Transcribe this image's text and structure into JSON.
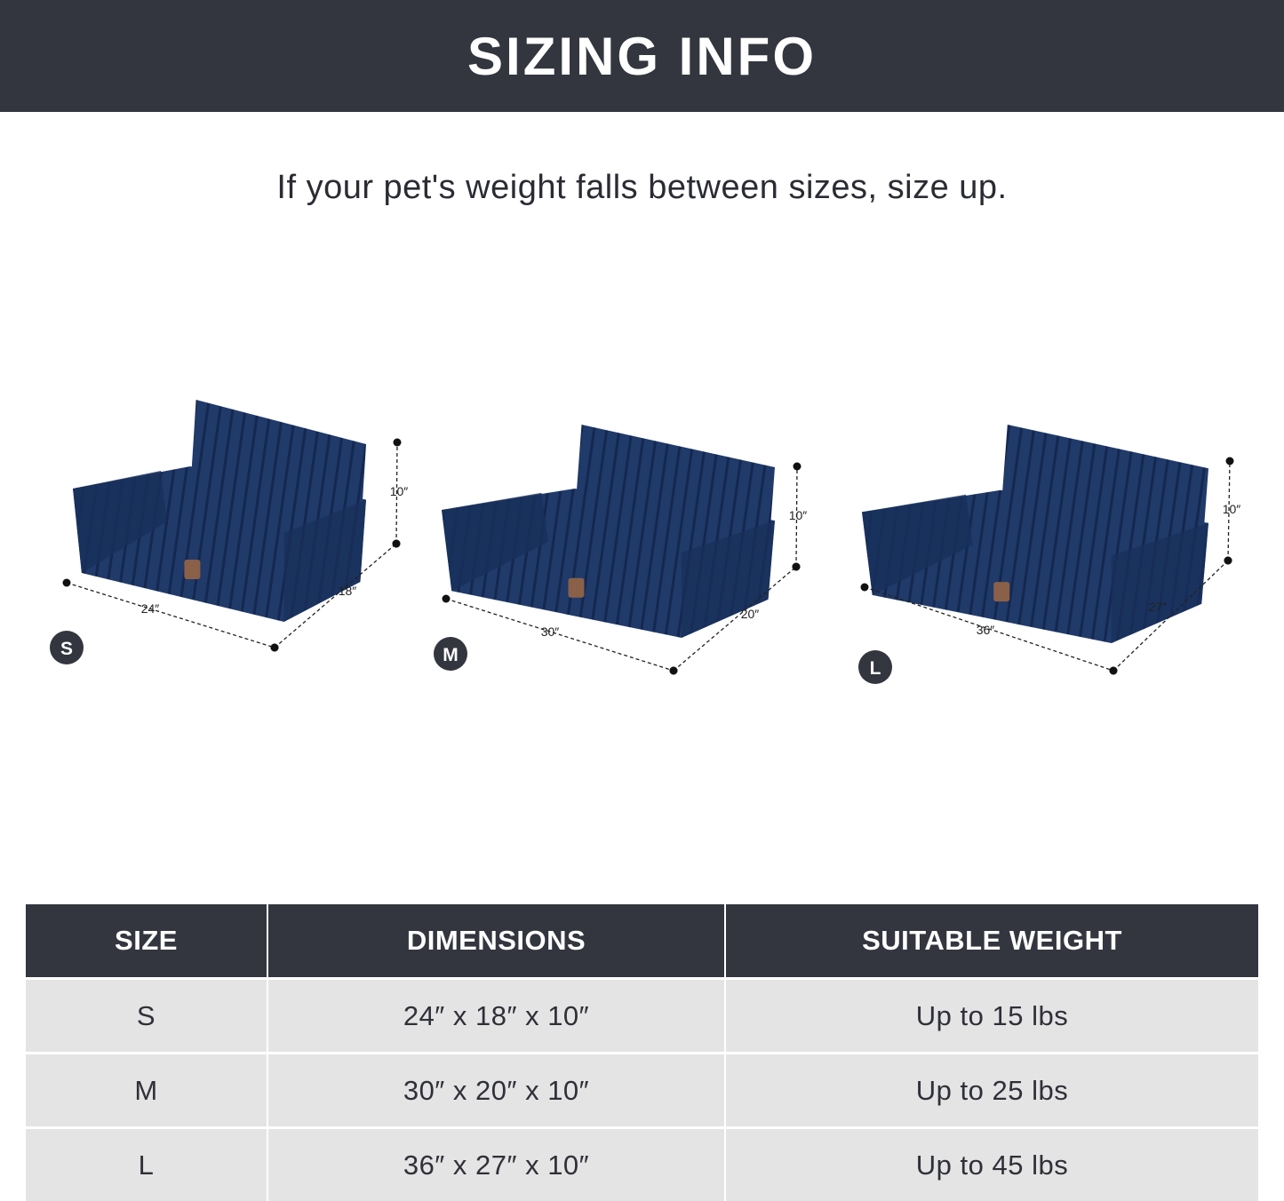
{
  "header": {
    "title": "SIZING INFO"
  },
  "subtitle": "If your pet's weight falls between sizes, size up.",
  "products": [
    {
      "badge": "S",
      "width": "24″",
      "depth": "18″",
      "height": "10″"
    },
    {
      "badge": "M",
      "width": "30″",
      "depth": "20″",
      "height": "10″"
    },
    {
      "badge": "L",
      "width": "36″",
      "depth": "27″",
      "height": "10″"
    }
  ],
  "colors": {
    "banner": "#33353f",
    "fabric": "#1f3866",
    "row": "#e4e4e4"
  },
  "table": {
    "headers": [
      "SIZE",
      "DIMENSIONS",
      "SUITABLE WEIGHT"
    ],
    "rows": [
      [
        "S",
        "24″ x 18″ x 10″",
        "Up to 15 lbs"
      ],
      [
        "M",
        "30″ x 20″ x 10″",
        "Up to 25 lbs"
      ],
      [
        "L",
        "36″ x 27″ x 10″",
        "Up to 45 lbs"
      ]
    ]
  }
}
